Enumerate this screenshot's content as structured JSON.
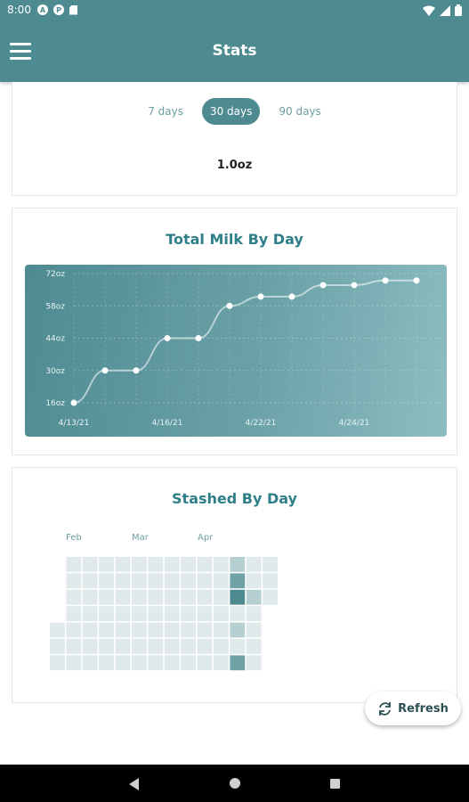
{
  "status_bar": {
    "time": "8:00",
    "icons": [
      "a-icon",
      "p-icon",
      "sd-card-icon",
      "wifi-icon",
      "signal-icon",
      "battery-icon"
    ]
  },
  "app_bar": {
    "title": "Stats"
  },
  "range_card": {
    "options": [
      "7 days",
      "30 days",
      "90 days"
    ],
    "selected": "30 days",
    "value": "1.0oz"
  },
  "chart_card": {
    "title": "Total Milk By Day",
    "chart_data": {
      "type": "line",
      "title": "Total Milk By Day",
      "y_ticks": [
        "72oz",
        "58oz",
        "44oz",
        "30oz",
        "16oz"
      ],
      "x_ticks": [
        "4/13/21",
        "4/16/21",
        "4/22/21",
        "4/24/21"
      ],
      "ylim": [
        16,
        72
      ],
      "grid": true,
      "series": [
        {
          "values": [
            16,
            30,
            30,
            44,
            44,
            58,
            62,
            62,
            67,
            67,
            69,
            69
          ]
        }
      ]
    }
  },
  "heatmap_card": {
    "title": "Stashed By Day",
    "months": [
      "Feb",
      "Mar",
      "Apr"
    ]
  },
  "refresh_button": {
    "label": "Refresh"
  },
  "colors": {
    "primary": "#4e8b91",
    "title_teal": "#2e7f88",
    "heat_empty": "#e0eaeb",
    "heat_light": "#b6d0d2",
    "heat_mid": "#6fa3a8",
    "heat_dark": "#4e8b91"
  }
}
